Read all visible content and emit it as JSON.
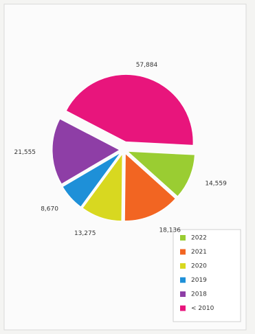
{
  "chart_data": {
    "type": "pie",
    "categories": [
      "2022",
      "2021",
      "2020",
      "2019",
      "2018",
      "< 2010"
    ],
    "values": [
      14559,
      18136,
      13275,
      8670,
      21555,
      57884
    ],
    "value_labels": [
      "14,559",
      "18,136",
      "13,275",
      "8,670",
      "21,555",
      "57,884"
    ],
    "colors": [
      "#9acd32",
      "#f26522",
      "#d8d820",
      "#1e90d8",
      "#8e3ea6",
      "#e8157c"
    ],
    "legend": "bottom-right"
  }
}
